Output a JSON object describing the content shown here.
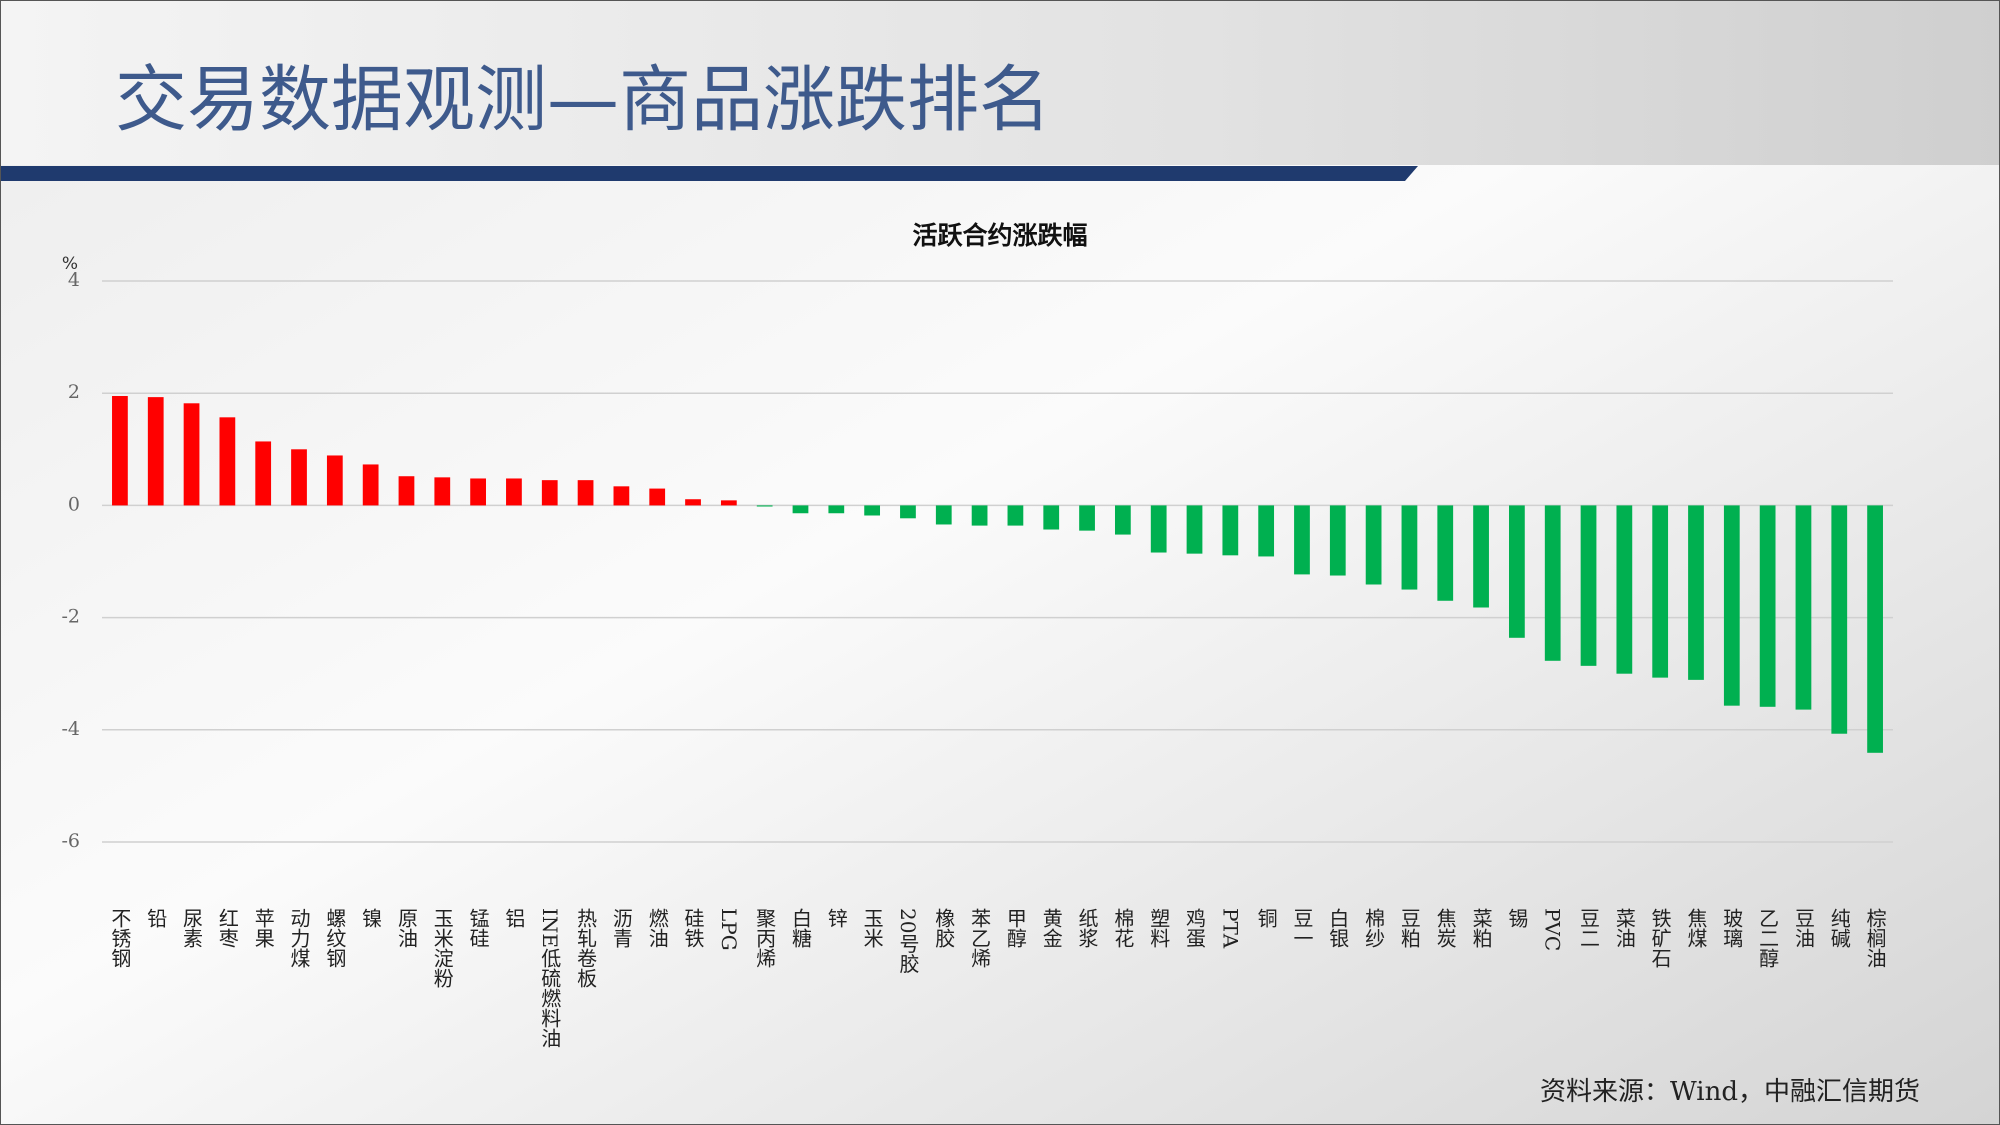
{
  "header": {
    "title": "交易数据观测—商品涨跌排名"
  },
  "chart_data": {
    "type": "bar",
    "title": "活跃合约涨跌幅",
    "y_label": "%",
    "categories": [
      "不锈钢",
      "铅",
      "尿素",
      "红枣",
      "苹果",
      "动力煤",
      "螺纹钢",
      "镍",
      "原油",
      "玉米淀粉",
      "锰硅",
      "铝",
      "INE低硫燃料油",
      "热轧卷板",
      "沥青",
      "燃油",
      "硅铁",
      "LPG",
      "聚丙烯",
      "白糖",
      "锌",
      "玉米",
      "20号胶",
      "橡胶",
      "苯乙烯",
      "甲醇",
      "黄金",
      "纸浆",
      "棉花",
      "塑料",
      "鸡蛋",
      "PTA",
      "铜",
      "豆一",
      "白银",
      "棉纱",
      "豆粕",
      "焦炭",
      "菜粕",
      "锡",
      "PVC",
      "豆二",
      "菜油",
      "铁矿石",
      "焦煤",
      "玻璃",
      "乙二醇",
      "豆油",
      "纯碱",
      "棕榈油"
    ],
    "values": [
      1.95,
      1.93,
      1.82,
      1.57,
      1.14,
      1.0,
      0.89,
      0.73,
      0.52,
      0.5,
      0.48,
      0.48,
      0.45,
      0.45,
      0.34,
      0.3,
      0.11,
      0.09,
      -0.02,
      -0.14,
      -0.14,
      -0.18,
      -0.23,
      -0.34,
      -0.36,
      -0.36,
      -0.43,
      -0.45,
      -0.52,
      -0.84,
      -0.86,
      -0.89,
      -0.91,
      -1.23,
      -1.25,
      -1.41,
      -1.5,
      -1.7,
      -1.82,
      -2.36,
      -2.77,
      -2.86,
      -3.0,
      -3.07,
      -3.11,
      -3.57,
      -3.59,
      -3.64,
      -4.07,
      -4.41
    ],
    "color_positive": "#ff0000",
    "color_negative": "#00b050",
    "ylim": [
      -6,
      4
    ],
    "yticks": [
      -6,
      -4,
      -2,
      0,
      2,
      4
    ],
    "grid": true
  },
  "footer": {
    "source": "资料来源：Wind，中融汇信期货"
  }
}
